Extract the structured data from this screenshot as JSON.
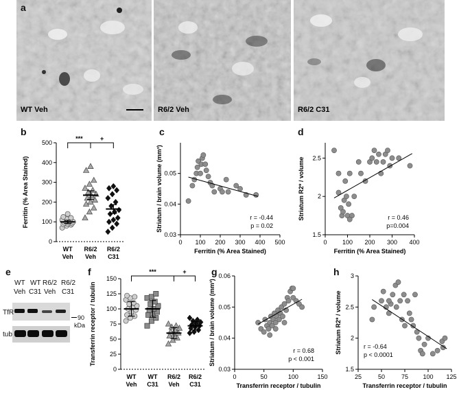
{
  "panels": {
    "a": "a",
    "b": "b",
    "c": "c",
    "d": "d",
    "e": "e",
    "f": "f",
    "g": "g",
    "h": "h"
  },
  "micrographs": [
    {
      "label": "WT Veh"
    },
    {
      "label": "R6/2 Veh"
    },
    {
      "label": "R6/2 C31"
    }
  ],
  "blot": {
    "groups": [
      {
        "line1": "WT",
        "line2": "Veh"
      },
      {
        "line1": "WT",
        "line2": "C31"
      },
      {
        "line1": "R6/2",
        "line2": "Veh"
      },
      {
        "line1": "R6/2",
        "line2": "C31"
      }
    ],
    "row_labels": [
      "TfR",
      "tub"
    ],
    "marker": "90",
    "marker_unit": "kDa"
  },
  "chart_data": [
    {
      "id": "b",
      "type": "scatter",
      "ylabel": "Ferritin (% Area Stained)",
      "ylim": [
        0,
        500
      ],
      "yticks": [
        0,
        100,
        200,
        300,
        400,
        500
      ],
      "categories": [
        [
          "WT",
          "Veh"
        ],
        [
          "R6/2",
          "Veh"
        ],
        [
          "R6/2",
          "C31"
        ]
      ],
      "series": [
        {
          "values": [
            70,
            80,
            85,
            88,
            90,
            92,
            95,
            98,
            100,
            102,
            105,
            110,
            115,
            120,
            125,
            140
          ],
          "mean": 100,
          "sem": 8,
          "marker": "circle",
          "fill": "#cfcfcf"
        },
        {
          "values": [
            120,
            150,
            170,
            190,
            200,
            210,
            220,
            230,
            240,
            250,
            260,
            270,
            290,
            310,
            360,
            380
          ],
          "mean": 235,
          "sem": 22,
          "marker": "triangle",
          "fill": "#a8a8a8"
        },
        {
          "values": [
            50,
            70,
            90,
            100,
            110,
            120,
            140,
            150,
            160,
            180,
            200,
            220,
            240,
            260,
            270,
            280
          ],
          "mean": 165,
          "sem": 22,
          "marker": "diamond",
          "fill": "#111111"
        }
      ],
      "significance": [
        {
          "from": 0,
          "to": 1,
          "label": "***"
        },
        {
          "from": 1,
          "to": 2,
          "label": "+"
        }
      ]
    },
    {
      "id": "c",
      "type": "scatter",
      "xlabel": "Ferritin (% Area Stained)",
      "ylabel": "Striatum / brain volume (mm³)",
      "xlim": [
        0,
        500
      ],
      "ylim": [
        0.03,
        0.06
      ],
      "xticks": [
        0,
        100,
        200,
        300,
        400,
        500
      ],
      "yticks": [
        0.03,
        0.04,
        0.05
      ],
      "points": [
        [
          40,
          0.041
        ],
        [
          60,
          0.046
        ],
        [
          70,
          0.048
        ],
        [
          80,
          0.05
        ],
        [
          85,
          0.052
        ],
        [
          90,
          0.054
        ],
        [
          100,
          0.05
        ],
        [
          105,
          0.053
        ],
        [
          110,
          0.055
        ],
        [
          115,
          0.056
        ],
        [
          125,
          0.053
        ],
        [
          140,
          0.049
        ],
        [
          150,
          0.047
        ],
        [
          160,
          0.046
        ],
        [
          170,
          0.044
        ],
        [
          200,
          0.045
        ],
        [
          230,
          0.048
        ],
        [
          240,
          0.044
        ],
        [
          280,
          0.046
        ],
        [
          300,
          0.045
        ],
        [
          330,
          0.043
        ],
        [
          380,
          0.043
        ],
        [
          130,
          0.051
        ],
        [
          210,
          0.044
        ]
      ],
      "fit": [
        [
          40,
          0.0488
        ],
        [
          390,
          0.0425
        ]
      ],
      "annotations": [
        "r = -0.44",
        "p = 0.02"
      ]
    },
    {
      "id": "d",
      "type": "scatter",
      "xlabel": "Ferritin (% Area Stained)",
      "ylabel": "Striatum R2* / volume",
      "xlim": [
        0,
        400
      ],
      "ylim": [
        1.5,
        2.7
      ],
      "xticks": [
        0,
        100,
        200,
        300,
        400
      ],
      "yticks": [
        1.5,
        2.0,
        2.5
      ],
      "points": [
        [
          40,
          2.6
        ],
        [
          60,
          2.05
        ],
        [
          70,
          1.85
        ],
        [
          75,
          1.75
        ],
        [
          80,
          1.8
        ],
        [
          85,
          1.95
        ],
        [
          90,
          2.2
        ],
        [
          95,
          2.0
        ],
        [
          100,
          1.75
        ],
        [
          105,
          1.9
        ],
        [
          110,
          2.3
        ],
        [
          120,
          1.75
        ],
        [
          130,
          2.0
        ],
        [
          150,
          2.45
        ],
        [
          160,
          2.3
        ],
        [
          180,
          2.2
        ],
        [
          200,
          2.45
        ],
        [
          210,
          2.5
        ],
        [
          220,
          2.6
        ],
        [
          230,
          2.45
        ],
        [
          240,
          2.55
        ],
        [
          250,
          2.3
        ],
        [
          260,
          2.45
        ],
        [
          270,
          2.55
        ],
        [
          280,
          2.6
        ],
        [
          290,
          2.4
        ],
        [
          300,
          2.5
        ],
        [
          330,
          2.5
        ],
        [
          380,
          2.4
        ],
        [
          60,
          2.3
        ],
        [
          110,
          1.7
        ]
      ],
      "fit": [
        [
          40,
          1.98
        ],
        [
          390,
          2.56
        ]
      ],
      "annotations": [
        "r = 0.46",
        "p=0.004"
      ]
    },
    {
      "id": "f",
      "type": "scatter",
      "ylabel": "Transferrin receptor / tubulin",
      "ylim": [
        0,
        150
      ],
      "yticks": [
        0,
        25,
        50,
        75,
        100,
        125,
        150
      ],
      "categories": [
        [
          "WT",
          "Veh"
        ],
        [
          "WT",
          "C31"
        ],
        [
          "R6/2",
          "Veh"
        ],
        [
          "R6/2",
          "C31"
        ]
      ],
      "series": [
        {
          "values": [
            80,
            85,
            88,
            90,
            95,
            98,
            100,
            102,
            105,
            108,
            110,
            115,
            118,
            120,
            122
          ],
          "mean": 100,
          "sem": 12,
          "marker": "circle",
          "fill": "#cfcfcf"
        },
        {
          "values": [
            72,
            80,
            85,
            90,
            92,
            95,
            98,
            100,
            105,
            108,
            112,
            118,
            120,
            125
          ],
          "mean": 100,
          "sem": 14,
          "marker": "square",
          "fill": "#8c8c8c"
        },
        {
          "values": [
            42,
            48,
            52,
            55,
            58,
            60,
            62,
            65,
            68,
            70,
            72,
            75
          ],
          "mean": 60,
          "sem": 9,
          "marker": "triangle",
          "fill": "#a8a8a8"
        },
        {
          "values": [
            60,
            62,
            65,
            68,
            70,
            72,
            74,
            76,
            78,
            80,
            82,
            85
          ],
          "mean": 72,
          "sem": 7,
          "marker": "diamond",
          "fill": "#111111"
        }
      ],
      "significance": [
        {
          "from": 0,
          "to": 2,
          "label": "***"
        },
        {
          "from": 2,
          "to": 3,
          "label": "+"
        }
      ]
    },
    {
      "id": "g",
      "type": "scatter",
      "xlabel": "Transferrin receptor / tubulin",
      "ylabel": "Striatum / brain volume (mm³)",
      "xlim": [
        0,
        150
      ],
      "ylim": [
        0.03,
        0.06
      ],
      "xticks": [
        0,
        50,
        100,
        150
      ],
      "yticks": [
        0.03,
        0.04,
        0.05,
        0.06
      ],
      "points": [
        [
          40,
          0.045
        ],
        [
          45,
          0.043
        ],
        [
          50,
          0.042
        ],
        [
          52,
          0.046
        ],
        [
          55,
          0.044
        ],
        [
          58,
          0.043
        ],
        [
          60,
          0.045
        ],
        [
          62,
          0.047
        ],
        [
          64,
          0.044
        ],
        [
          66,
          0.046
        ],
        [
          68,
          0.048
        ],
        [
          70,
          0.045
        ],
        [
          72,
          0.047
        ],
        [
          74,
          0.049
        ],
        [
          76,
          0.046
        ],
        [
          78,
          0.048
        ],
        [
          80,
          0.05
        ],
        [
          82,
          0.047
        ],
        [
          85,
          0.051
        ],
        [
          88,
          0.049
        ],
        [
          90,
          0.053
        ],
        [
          92,
          0.052
        ],
        [
          95,
          0.055
        ],
        [
          98,
          0.056
        ],
        [
          100,
          0.053
        ],
        [
          105,
          0.052
        ],
        [
          110,
          0.051
        ],
        [
          115,
          0.05
        ],
        [
          60,
          0.041
        ],
        [
          70,
          0.043
        ],
        [
          85,
          0.045
        ],
        [
          100,
          0.056
        ]
      ],
      "fit": [
        [
          40,
          0.0445
        ],
        [
          115,
          0.0525
        ]
      ],
      "annotations": [
        "r = 0.68",
        "p < 0.001"
      ]
    },
    {
      "id": "h",
      "type": "scatter",
      "xlabel": "Transferrin receptor / tubulin",
      "ylabel": "Striatum R2* / volume",
      "xlim": [
        25,
        125
      ],
      "ylim": [
        1.5,
        3.0
      ],
      "xticks": [
        25,
        50,
        75,
        100,
        125
      ],
      "yticks": [
        1.5,
        2.0,
        2.5,
        3.0
      ],
      "points": [
        [
          40,
          2.3
        ],
        [
          42,
          2.5
        ],
        [
          50,
          2.6
        ],
        [
          52,
          2.75
        ],
        [
          55,
          2.5
        ],
        [
          58,
          2.4
        ],
        [
          60,
          2.55
        ],
        [
          62,
          2.7
        ],
        [
          65,
          2.85
        ],
        [
          66,
          2.5
        ],
        [
          68,
          2.9
        ],
        [
          70,
          2.6
        ],
        [
          72,
          2.3
        ],
        [
          74,
          2.7
        ],
        [
          75,
          2.2
        ],
        [
          78,
          2.6
        ],
        [
          80,
          2.4
        ],
        [
          82,
          2.3
        ],
        [
          84,
          2.2
        ],
        [
          86,
          2.7
        ],
        [
          88,
          2.1
        ],
        [
          90,
          2.0
        ],
        [
          92,
          1.8
        ],
        [
          94,
          1.75
        ],
        [
          96,
          1.9
        ],
        [
          100,
          2.0
        ],
        [
          105,
          1.75
        ],
        [
          110,
          1.8
        ],
        [
          115,
          1.95
        ],
        [
          118,
          2.0
        ],
        [
          116,
          1.85
        ],
        [
          58,
          2.6
        ]
      ],
      "fit": [
        [
          40,
          2.62
        ],
        [
          120,
          1.83
        ]
      ],
      "annotations": [
        "r = -0.64",
        "p < 0.0001"
      ]
    }
  ],
  "colors": {
    "micro_bg": "#c9c9c9",
    "ink": "#000000",
    "fit_line": "#000000"
  }
}
